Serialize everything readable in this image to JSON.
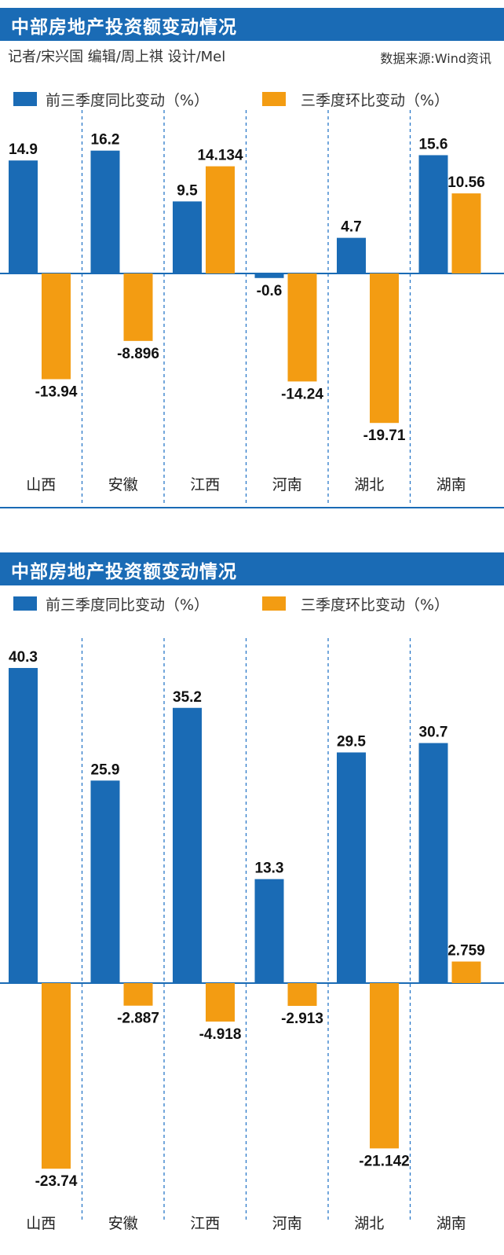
{
  "colors": {
    "title_bg": "#1a6bb5",
    "series_a": "#1a6bb5",
    "series_b": "#f39c12",
    "divider": "#2a78c8"
  },
  "top": {
    "title": "中部房地产投资额变动情况",
    "credits": "记者/宋兴国   编辑/周上祺  设计/Mel",
    "source": "数据来源:Wind资讯"
  },
  "bottom": {
    "title": "中部房地产投资额变动情况"
  },
  "chart_data": [
    {
      "type": "bar",
      "title": "中部房地产投资额变动情况",
      "categories": [
        "山西",
        "安徽",
        "江西",
        "河南",
        "湖北",
        "湖南"
      ],
      "series": [
        {
          "name": "前三季度同比变动（%）",
          "values": [
            14.9,
            16.2,
            9.5,
            -0.6,
            4.7,
            15.6
          ],
          "labels": [
            "14.9",
            "16.2",
            "9.5",
            "-0.6",
            "4.7",
            "15.6"
          ]
        },
        {
          "name": "三季度环比变动（%）",
          "values": [
            -13.94,
            -8.896,
            14.134,
            -14.24,
            -19.71,
            10.56
          ],
          "labels": [
            "-13.94",
            "-8.896",
            "14.134",
            "-14.24",
            "-19.71",
            "10.56"
          ]
        }
      ]
    },
    {
      "type": "bar",
      "title": "中部房地产投资额变动情况",
      "categories": [
        "山西",
        "安徽",
        "江西",
        "河南",
        "湖北",
        "湖南"
      ],
      "series": [
        {
          "name": "前三季度同比变动（%）",
          "values": [
            40.3,
            25.9,
            35.2,
            13.3,
            29.5,
            30.7
          ],
          "labels": [
            "40.3",
            "25.9",
            "35.2",
            "13.3",
            "29.5",
            "30.7"
          ]
        },
        {
          "name": "三季度环比变动（%）",
          "values": [
            -23.74,
            -2.887,
            -4.918,
            -2.913,
            -21.142,
            2.759
          ],
          "labels": [
            "-23.74",
            "-2.887",
            "-4.918",
            "-2.913",
            "-21.142",
            "2.759"
          ]
        }
      ]
    }
  ]
}
